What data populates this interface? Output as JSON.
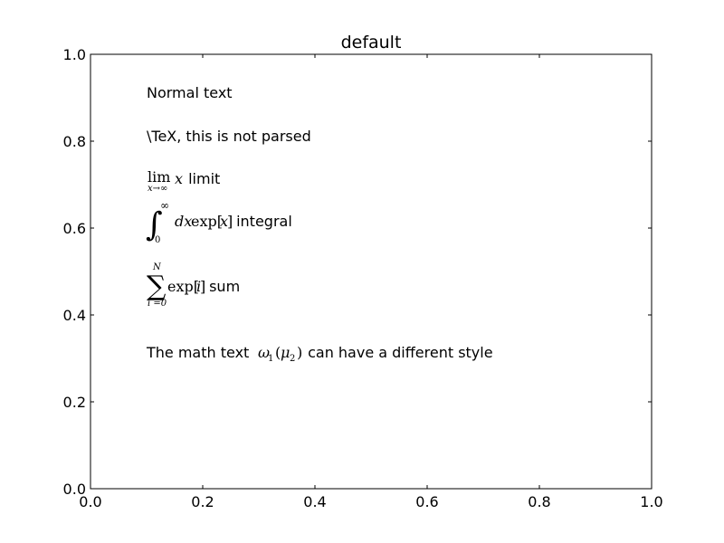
{
  "chart_data": {
    "type": "scatter",
    "title": "default",
    "xlabel": "",
    "ylabel": "",
    "xlim": [
      0.0,
      1.0
    ],
    "ylim": [
      0.0,
      1.0
    ],
    "x_ticks": [
      0.0,
      0.2,
      0.4,
      0.6,
      0.8,
      1.0
    ],
    "y_ticks": [
      0.0,
      0.2,
      0.4,
      0.6,
      0.8,
      1.0
    ],
    "x_tick_labels": [
      "0.0",
      "0.2",
      "0.4",
      "0.6",
      "0.8",
      "1.0"
    ],
    "y_tick_labels": [
      "0.0",
      "0.2",
      "0.4",
      "0.6",
      "0.8",
      "1.0"
    ],
    "grid": false,
    "legend": "none",
    "annotations": [
      {
        "x": 0.1,
        "y": 0.9,
        "text": "Normal text"
      },
      {
        "x": 0.1,
        "y": 0.8,
        "text": "\\TeX, this is not parsed"
      },
      {
        "x": 0.1,
        "y": 0.7,
        "math": "lim_{x→∞} x",
        "text": " limit"
      },
      {
        "x": 0.1,
        "y": 0.6,
        "math": "∫_0^∞ dx exp[x]",
        "text": " integral"
      },
      {
        "x": 0.1,
        "y": 0.45,
        "math": "∑_{i=0}^N exp[i]",
        "text": " sum"
      },
      {
        "x": 0.1,
        "y": 0.3,
        "text_before": "The math text ",
        "math": "ω_1 (μ_2)",
        "text_after": " can have a different style"
      }
    ]
  },
  "math_parts": {
    "lim": "lim",
    "lim_sub": "x→∞",
    "lim_var": "x",
    "int_sym": "∫",
    "int_upper": "∞",
    "int_lower": "0",
    "int_body": "dx",
    "int_exp": "exp[",
    "int_var": "x",
    "int_close": "]",
    "sum_sym": "∑",
    "sum_upper": "N",
    "sum_lower": "i =0",
    "sum_exp": "exp[",
    "sum_var": "i",
    "sum_close": "]",
    "omega": "ω",
    "omega_sub": "1",
    "paren_open": "(",
    "mu": "μ",
    "mu_sub": "2",
    "paren_close": ")"
  }
}
